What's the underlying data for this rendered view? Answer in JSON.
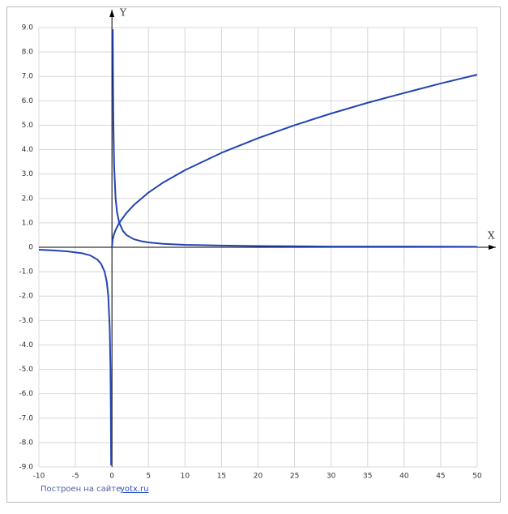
{
  "chart_data": {
    "type": "line",
    "x_label": "X",
    "y_label": "Y",
    "xlim": [
      -10,
      50
    ],
    "ylim": [
      -9,
      9
    ],
    "xticks": [
      -10,
      -5,
      0,
      5,
      10,
      15,
      20,
      25,
      30,
      35,
      40,
      45,
      50
    ],
    "yticks": [
      {
        "value": 9,
        "label": "9.0"
      },
      {
        "value": 8,
        "label": "8.0"
      },
      {
        "value": 7,
        "label": "7.0"
      },
      {
        "value": 6,
        "label": "6.0"
      },
      {
        "value": 5,
        "label": "5.0"
      },
      {
        "value": 4,
        "label": "4.0"
      },
      {
        "value": 3,
        "label": "3.0"
      },
      {
        "value": 2,
        "label": "2.0"
      },
      {
        "value": 1,
        "label": "1.0"
      },
      0,
      {
        "value": -1,
        "label": "-1.0"
      },
      {
        "value": -2,
        "label": "-2.0"
      },
      {
        "value": -3,
        "label": "-3.0"
      },
      {
        "value": -4,
        "label": "-4.0"
      },
      {
        "value": -5,
        "label": "-5.0"
      },
      {
        "value": -6,
        "label": "-6.0"
      },
      {
        "value": -7,
        "label": "-7.0"
      },
      {
        "value": -8,
        "label": "-8.0"
      },
      {
        "value": -9,
        "label": "-9.0"
      }
    ],
    "grid": true,
    "series": [
      {
        "color": "#2343b3",
        "x": [
          0,
          0.1,
          0.25,
          0.5,
          1,
          2,
          3,
          5,
          7,
          10,
          15,
          20,
          25,
          30,
          35,
          40,
          45,
          50
        ],
        "values": [
          0,
          0.32,
          0.5,
          0.71,
          1,
          1.41,
          1.73,
          2.24,
          2.65,
          3.16,
          3.87,
          4.47,
          5,
          5.48,
          5.92,
          6.32,
          6.71,
          7.07
        ]
      },
      {
        "color": "#2343b3",
        "x": [
          -10,
          -8,
          -6,
          -4,
          -3,
          -2,
          -1.5,
          -1,
          -0.7,
          -0.5,
          -0.3,
          -0.2,
          -0.15,
          -0.112,
          0,
          0.112,
          0.15,
          0.2,
          0.3,
          0.5,
          0.7,
          1,
          1.5,
          2,
          3,
          4,
          5,
          7,
          10,
          15,
          20,
          30,
          40,
          50
        ],
        "values": [
          -0.1,
          -0.13,
          -0.17,
          -0.25,
          -0.33,
          -0.5,
          -0.67,
          -1,
          -1.43,
          -2,
          -3.33,
          -5,
          -6.67,
          -8.93,
          null,
          8.93,
          6.67,
          5,
          3.33,
          2,
          1.43,
          1,
          0.67,
          0.5,
          0.33,
          0.25,
          0.2,
          0.14,
          0.1,
          0.07,
          0.05,
          0.03,
          0.03,
          0.02
        ]
      }
    ]
  },
  "footer": {
    "text": "Построен на сайте",
    "link": "yotx.ru"
  }
}
